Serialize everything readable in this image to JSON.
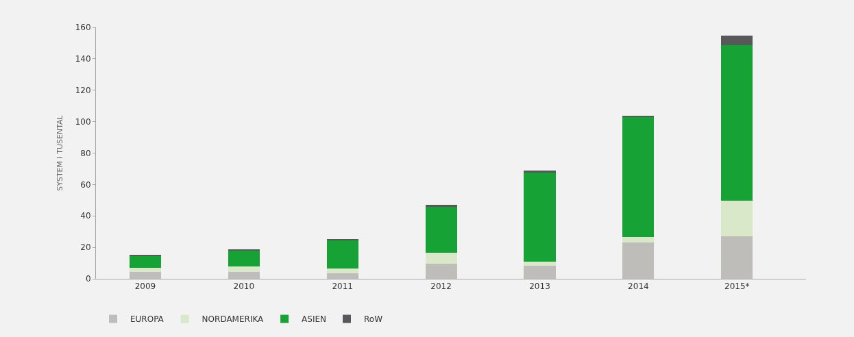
{
  "chart_data": {
    "type": "bar",
    "stacked": true,
    "ylabel": "SYSTEM I TUSENTAL",
    "categories": [
      "2009",
      "2010",
      "2011",
      "2012",
      "2013",
      "2014",
      "2015*"
    ],
    "series": [
      {
        "name": "EUROPA",
        "color": "#bebdba",
        "values": [
          4.3,
          4.3,
          3.6,
          9.5,
          8.2,
          23.3,
          27.1
        ]
      },
      {
        "name": "NORDAMERIKA",
        "color": "#d9e8c8",
        "values": [
          2.6,
          3.6,
          2.9,
          6.9,
          2.6,
          3.1,
          22.8
        ]
      },
      {
        "name": "ASIEN",
        "color": "#16a235",
        "values": [
          7.5,
          10.2,
          18.1,
          29.4,
          56.7,
          76.6,
          98.6
        ]
      },
      {
        "name": "RoW",
        "color": "#58585a",
        "values": [
          0.5,
          0.6,
          0.6,
          1.3,
          1.2,
          0.9,
          6.4
        ]
      }
    ],
    "ylim": [
      0,
      160
    ],
    "yticks": [
      0,
      20,
      40,
      60,
      80,
      100,
      120,
      140,
      160
    ],
    "grid": false,
    "legend": "bottom left"
  }
}
